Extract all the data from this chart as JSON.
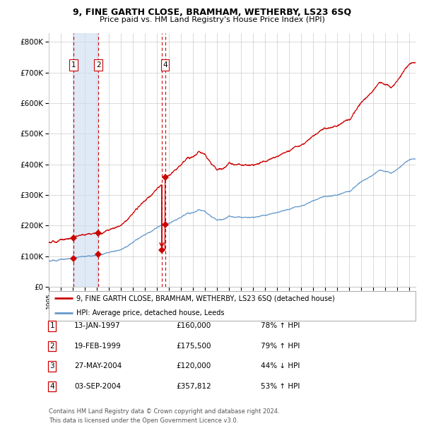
{
  "title": "9, FINE GARTH CLOSE, BRAMHAM, WETHERBY, LS23 6SQ",
  "subtitle": "Price paid vs. HM Land Registry's House Price Index (HPI)",
  "legend_line1": "9, FINE GARTH CLOSE, BRAMHAM, WETHERBY, LS23 6SQ (detached house)",
  "legend_line2": "HPI: Average price, detached house, Leeds",
  "footer1": "Contains HM Land Registry data © Crown copyright and database right 2024.",
  "footer2": "This data is licensed under the Open Government Licence v3.0.",
  "transactions": [
    {
      "id": 1,
      "date": "13-JAN-1997",
      "price": 160000,
      "pct": "78%",
      "dir": "↑"
    },
    {
      "id": 2,
      "date": "19-FEB-1999",
      "price": 175500,
      "pct": "79%",
      "dir": "↑"
    },
    {
      "id": 3,
      "date": "27-MAY-2004",
      "price": 120000,
      "pct": "44%",
      "dir": "↓"
    },
    {
      "id": 4,
      "date": "03-SEP-2004",
      "price": 357812,
      "pct": "53%",
      "dir": "↑"
    }
  ],
  "sale_dates_decimal": [
    1997.04,
    1999.13,
    2004.4,
    2004.67
  ],
  "sale_prices": [
    160000,
    175500,
    120000,
    357812
  ],
  "red_line_color": "#cc0000",
  "blue_line_color": "#6699cc",
  "marker_color": "#cc0000",
  "vline_color": "#cc0000",
  "shade_color": "#ccddf0",
  "grid_color": "#cccccc",
  "background_color": "#ffffff",
  "ylim": [
    0,
    830000
  ],
  "xlim_start": 1995.0,
  "xlim_end": 2025.5,
  "hpi_keypoints": [
    [
      1995.0,
      85000
    ],
    [
      1996.0,
      88000
    ],
    [
      1997.0,
      92000
    ],
    [
      1998.0,
      98000
    ],
    [
      1999.0,
      105000
    ],
    [
      2000.0,
      116000
    ],
    [
      2001.0,
      130000
    ],
    [
      2002.0,
      155000
    ],
    [
      2003.0,
      178000
    ],
    [
      2004.0,
      198000
    ],
    [
      2005.0,
      212000
    ],
    [
      2006.0,
      228000
    ],
    [
      2007.0,
      248000
    ],
    [
      2007.5,
      260000
    ],
    [
      2008.0,
      255000
    ],
    [
      2008.5,
      240000
    ],
    [
      2009.0,
      228000
    ],
    [
      2009.5,
      232000
    ],
    [
      2010.0,
      245000
    ],
    [
      2011.0,
      245000
    ],
    [
      2012.0,
      242000
    ],
    [
      2013.0,
      248000
    ],
    [
      2014.0,
      258000
    ],
    [
      2015.0,
      268000
    ],
    [
      2016.0,
      278000
    ],
    [
      2017.0,
      292000
    ],
    [
      2018.0,
      300000
    ],
    [
      2019.0,
      308000
    ],
    [
      2020.0,
      320000
    ],
    [
      2021.0,
      355000
    ],
    [
      2022.0,
      385000
    ],
    [
      2022.5,
      400000
    ],
    [
      2023.0,
      395000
    ],
    [
      2023.5,
      390000
    ],
    [
      2024.0,
      400000
    ],
    [
      2024.5,
      415000
    ],
    [
      2025.0,
      430000
    ],
    [
      2025.5,
      430000
    ]
  ]
}
